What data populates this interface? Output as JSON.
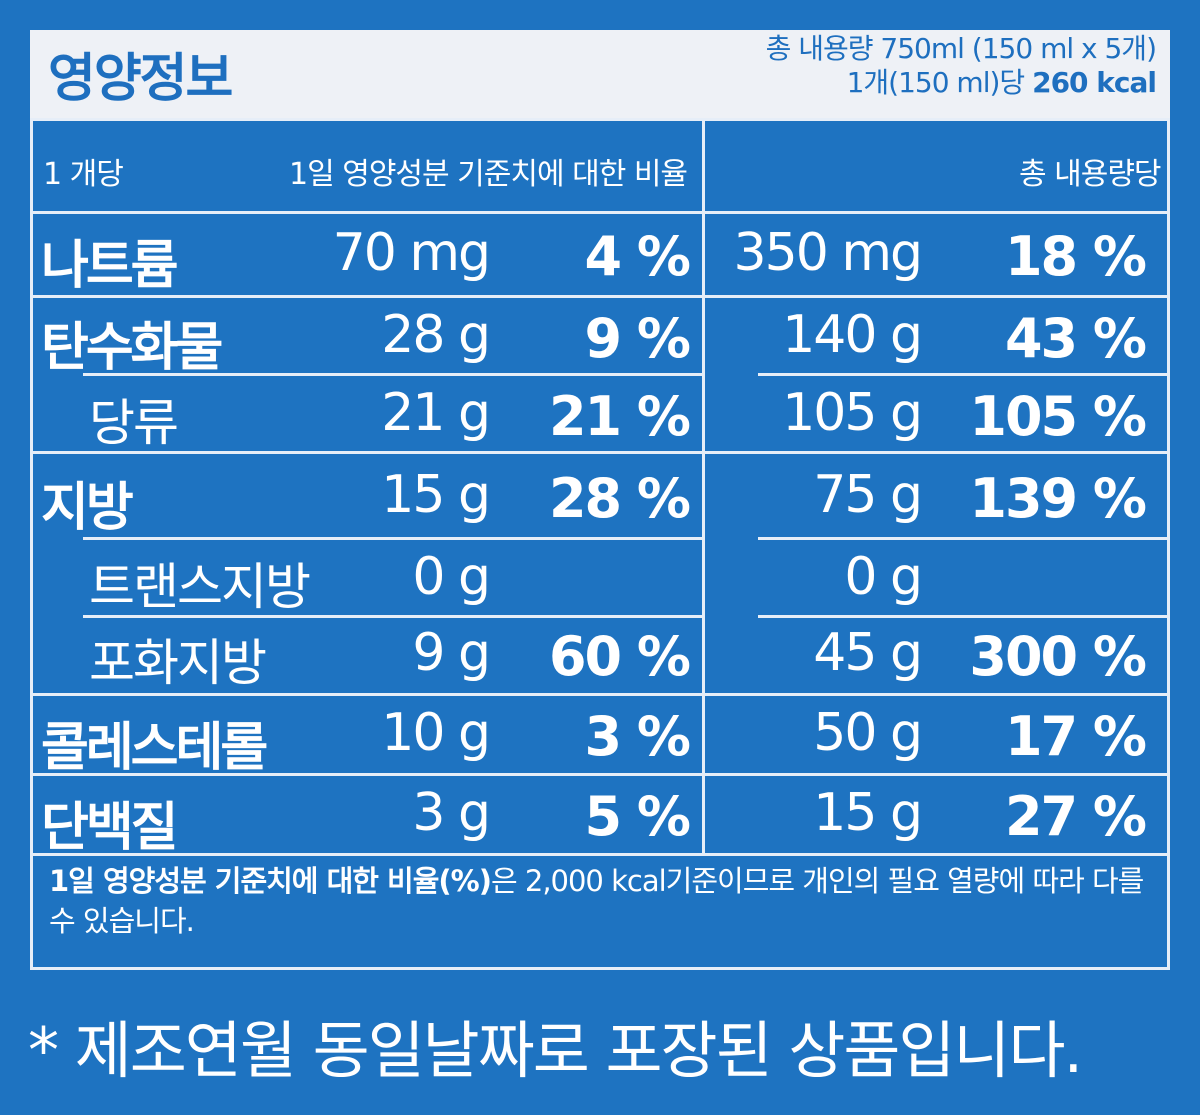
{
  "header": {
    "title": "영양정보",
    "total_content": "총 내용량 750ml (150 ml x 5개)",
    "per_unit_prefix": "1개(150 ml)당",
    "per_unit_kcal": "260 kcal"
  },
  "table": {
    "col_headers": {
      "per_unit": "1 개당",
      "daily_ratio": "1일 영양성분 기준치에 대한 비율",
      "per_total": "총 내용량당"
    },
    "rows": [
      {
        "name": "나트륨",
        "amount": "70 mg",
        "pct": "4 %",
        "total_amount": "350 mg",
        "total_pct": "18 %"
      },
      {
        "name": "탄수화물",
        "amount": "28 g",
        "pct": "9 %",
        "total_amount": "140 g",
        "total_pct": "43 %"
      },
      {
        "name": "당류",
        "amount": "21 g",
        "pct": "21 %",
        "total_amount": "105 g",
        "total_pct": "105 %"
      },
      {
        "name": "지방",
        "amount": "15 g",
        "pct": "28 %",
        "total_amount": "75 g",
        "total_pct": "139 %"
      },
      {
        "name": "트랜스지방",
        "amount": "0 g",
        "pct": "",
        "total_amount": "0 g",
        "total_pct": ""
      },
      {
        "name": "포화지방",
        "amount": "9 g",
        "pct": "60 %",
        "total_amount": "45 g",
        "total_pct": "300 %"
      },
      {
        "name": "콜레스테롤",
        "amount": "10 g",
        "pct": "3 %",
        "total_amount": "50 g",
        "total_pct": "17 %"
      },
      {
        "name": "단백질",
        "amount": "3 g",
        "pct": "5 %",
        "total_amount": "15 g",
        "total_pct": "27 %"
      }
    ],
    "footnote_bold": "1일 영양성분 기준치에 대한 비율(%)",
    "footnote_rest": "은 2,000 kcal기준이므로 개인의 필요 열량에 따라 다를 수 있습니다."
  },
  "notice": "* 제조연월 동일날짜로 포장된 상품입니다."
}
